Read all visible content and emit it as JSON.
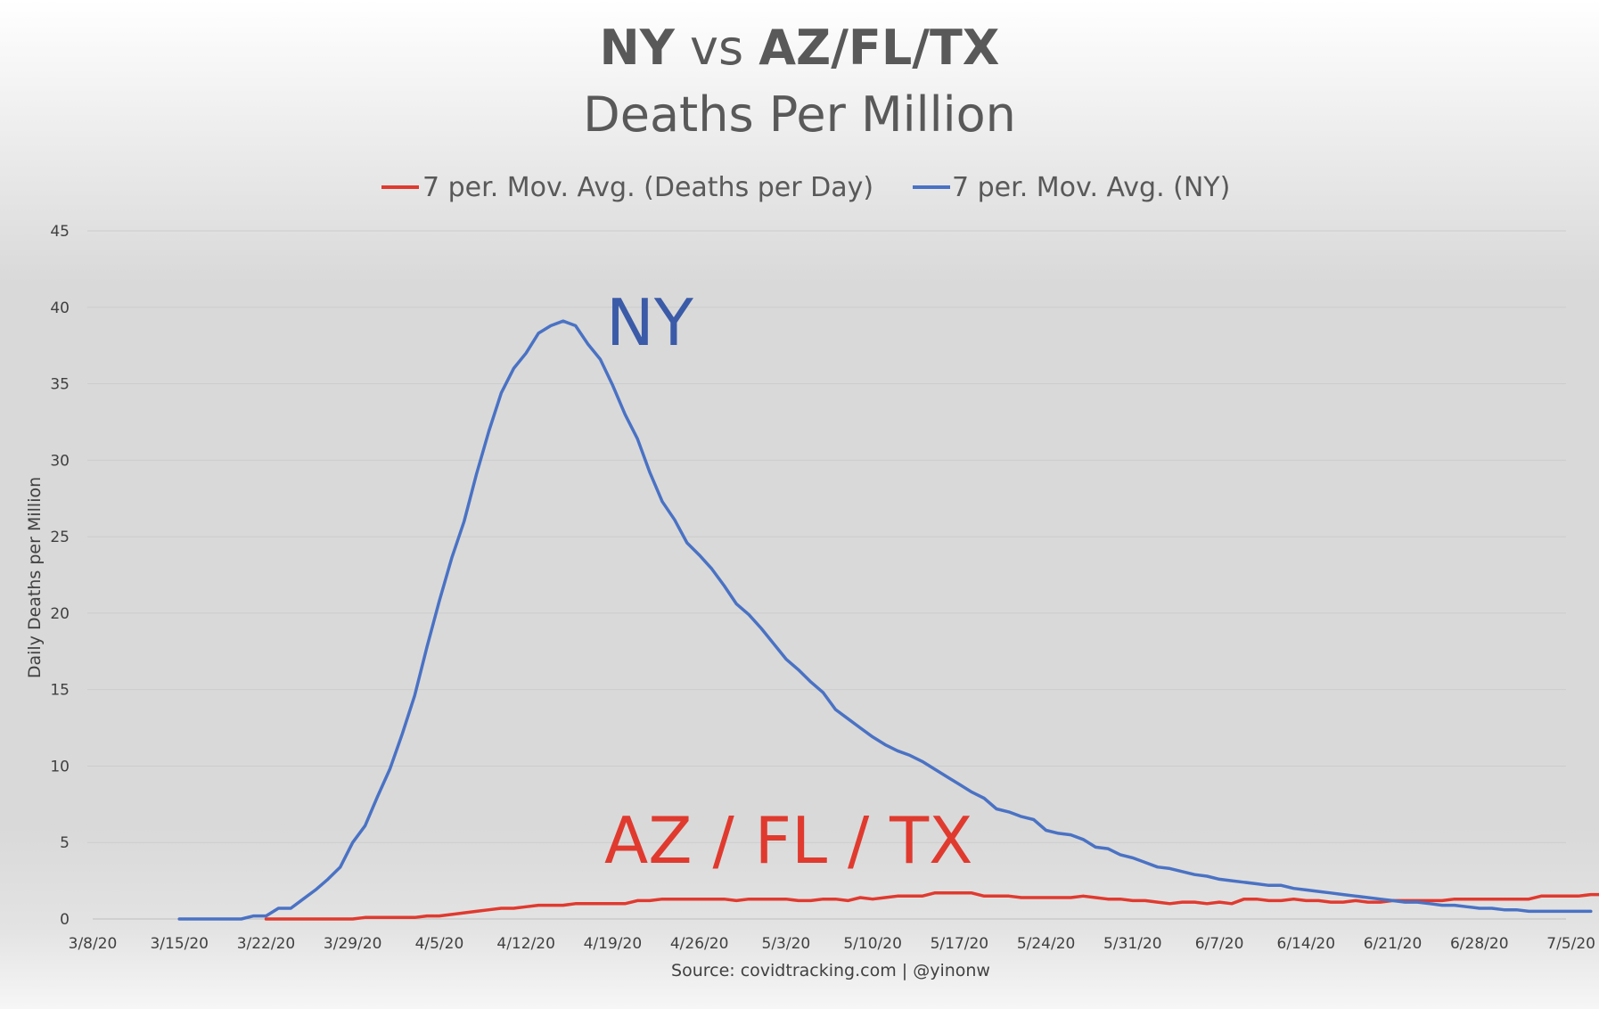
{
  "chart_data": {
    "type": "line",
    "title": {
      "part1": "NY",
      "part2": " vs ",
      "part3": "AZ/FL/TX",
      "line2": "Deaths Per Million"
    },
    "ylabel": "Daily Deaths per Million",
    "source": "Source: covidtracking.com | @yinonw",
    "ylim": [
      0,
      45
    ],
    "yticks": [
      0,
      5,
      10,
      15,
      20,
      25,
      30,
      35,
      40,
      45
    ],
    "xlim": [
      "2020-03-08",
      "2020-07-05"
    ],
    "xticks": [
      "3/8/20",
      "3/15/20",
      "3/22/20",
      "3/29/20",
      "4/5/20",
      "4/12/20",
      "4/19/20",
      "4/26/20",
      "5/3/20",
      "5/10/20",
      "5/17/20",
      "5/24/20",
      "5/31/20",
      "6/7/20",
      "6/14/20",
      "6/21/20",
      "6/28/20",
      "7/5/20"
    ],
    "grid": true,
    "legend_position": "top",
    "series": [
      {
        "name": "7 per. Mov. Avg. (Deaths per Day)",
        "color": "#E03A2F",
        "annotation": "AZ / FL / TX",
        "start": "2020-03-22",
        "values": [
          0,
          0,
          0,
          0,
          0,
          0,
          0,
          0,
          0.1,
          0.1,
          0.1,
          0.1,
          0.1,
          0.2,
          0.2,
          0.3,
          0.4,
          0.5,
          0.6,
          0.7,
          0.7,
          0.8,
          0.9,
          0.9,
          0.9,
          1.0,
          1.0,
          1.0,
          1.0,
          1.0,
          1.2,
          1.2,
          1.3,
          1.3,
          1.3,
          1.3,
          1.3,
          1.3,
          1.2,
          1.3,
          1.3,
          1.3,
          1.3,
          1.2,
          1.2,
          1.3,
          1.3,
          1.2,
          1.4,
          1.3,
          1.4,
          1.5,
          1.5,
          1.5,
          1.7,
          1.7,
          1.7,
          1.7,
          1.5,
          1.5,
          1.5,
          1.4,
          1.4,
          1.4,
          1.4,
          1.4,
          1.5,
          1.4,
          1.3,
          1.3,
          1.2,
          1.2,
          1.1,
          1.0,
          1.1,
          1.1,
          1.0,
          1.1,
          1.0,
          1.3,
          1.3,
          1.2,
          1.2,
          1.3,
          1.2,
          1.2,
          1.1,
          1.1,
          1.2,
          1.1,
          1.1,
          1.2,
          1.2,
          1.2,
          1.2,
          1.2,
          1.3,
          1.3,
          1.3,
          1.3,
          1.3,
          1.3,
          1.3,
          1.5,
          1.5,
          1.5,
          1.5,
          1.6,
          1.6,
          1.6,
          1.7,
          1.7,
          1.8,
          1.7,
          1.7
        ]
      },
      {
        "name": "7 per. Mov. Avg. (NY)",
        "color": "#4A72C4",
        "annotation": "NY",
        "start": "2020-03-15",
        "values": [
          0,
          0,
          0,
          0,
          0,
          0,
          0.2,
          0.2,
          0.7,
          0.7,
          1.3,
          1.9,
          2.6,
          3.4,
          5.0,
          6.1,
          8.0,
          9.8,
          12.1,
          14.6,
          17.8,
          20.8,
          23.6,
          26.0,
          29.1,
          31.9,
          34.4,
          36.0,
          37.0,
          38.3,
          38.8,
          39.1,
          38.8,
          37.6,
          36.6,
          34.9,
          33.0,
          31.4,
          29.2,
          27.3,
          26.1,
          24.6,
          23.8,
          22.9,
          21.8,
          20.6,
          19.9,
          19.0,
          18.0,
          17.0,
          16.3,
          15.5,
          14.8,
          13.7,
          13.1,
          12.5,
          11.9,
          11.4,
          11.0,
          10.7,
          10.3,
          9.8,
          9.3,
          8.8,
          8.3,
          7.9,
          7.2,
          7.0,
          6.7,
          6.5,
          5.8,
          5.6,
          5.5,
          5.2,
          4.7,
          4.6,
          4.2,
          4.0,
          3.7,
          3.4,
          3.3,
          3.1,
          2.9,
          2.8,
          2.6,
          2.5,
          2.4,
          2.3,
          2.2,
          2.2,
          2.0,
          1.9,
          1.8,
          1.7,
          1.6,
          1.5,
          1.4,
          1.3,
          1.2,
          1.1,
          1.1,
          1.0,
          0.9,
          0.9,
          0.8,
          0.7,
          0.7,
          0.6,
          0.6,
          0.5,
          0.5,
          0.5,
          0.5,
          0.5,
          0.5
        ]
      }
    ]
  }
}
